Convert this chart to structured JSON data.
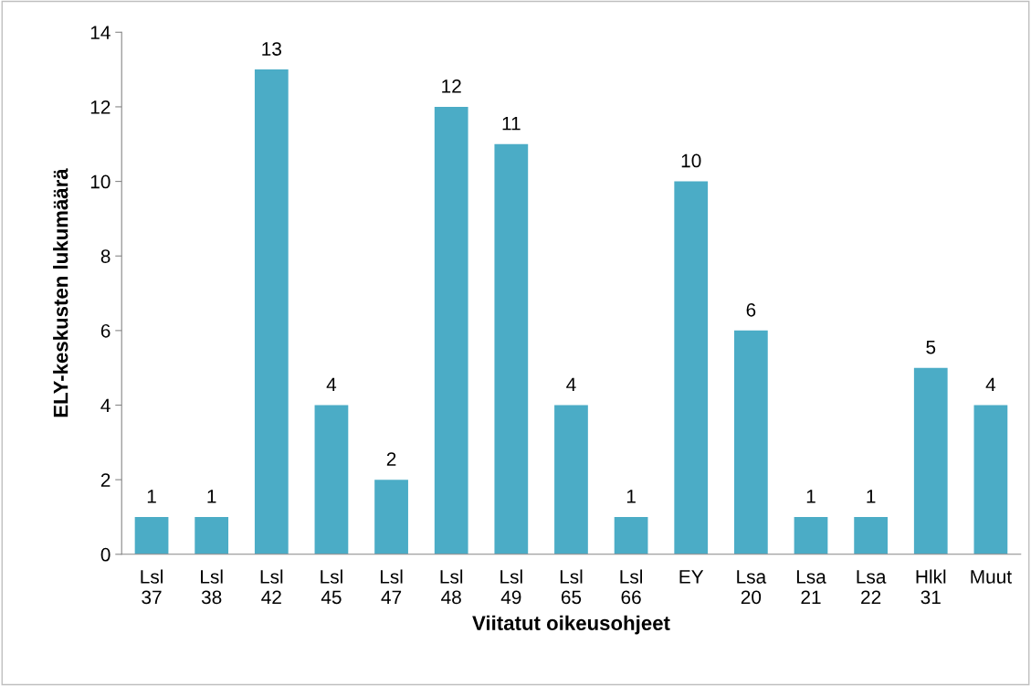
{
  "chart_data": {
    "type": "bar",
    "xlabel": "Viitatut oikeusohjeet",
    "ylabel": "ELY-keskusten lukumäärä",
    "categories": [
      "Lsl\n37",
      "Lsl\n38",
      "Lsl\n42",
      "Lsl\n45",
      "Lsl\n47",
      "Lsl\n48",
      "Lsl\n49",
      "Lsl\n65",
      "Lsl\n66",
      "EY",
      "Lsa\n20",
      "Lsa\n21",
      "Lsa\n22",
      "Hlkl\n31",
      "Muut"
    ],
    "values": [
      1,
      1,
      13,
      4,
      2,
      12,
      11,
      4,
      1,
      10,
      6,
      1,
      1,
      5,
      4
    ],
    "color": "#4bacc6",
    "ylim": [
      0,
      14
    ],
    "yticks": [
      0,
      2,
      4,
      6,
      8,
      10,
      12,
      14
    ],
    "grid": false,
    "data_labels": true
  }
}
